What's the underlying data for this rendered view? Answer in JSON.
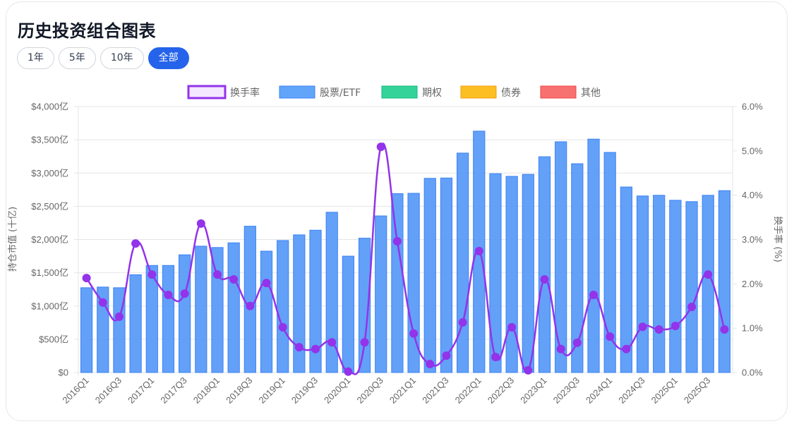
{
  "header": {
    "title": "历史投资组合图表"
  },
  "range_buttons": [
    {
      "label": "1年",
      "active": false
    },
    {
      "label": "5年",
      "active": false
    },
    {
      "label": "10年",
      "active": false
    },
    {
      "label": "全部",
      "active": true
    }
  ],
  "colors": {
    "accent": "#2563eb",
    "stocks_fill": "#60a5fa",
    "stocks_bar": "#5b9bf8",
    "stocks_border": "#3b82f6",
    "options": "#34d399",
    "options_border": "#10b981",
    "bonds": "#fbbf24",
    "bonds_border": "#f59e0b",
    "other": "#f87171",
    "other_border": "#ef4444",
    "turnover_line": "#9333ea",
    "turnover_fill": "#f3e8ff",
    "grid": "#e5e5e5",
    "tick": "#666666"
  },
  "chart_data": {
    "type": "bar",
    "combo": "bar+line",
    "title": "历史投资组合图表",
    "xlabel": "",
    "ylabel": "持仓市值 (十亿)",
    "y2label": "换手率 (%)",
    "ylim": [
      0,
      4000
    ],
    "y2lim": [
      0,
      6.0
    ],
    "y_ticks": [
      "$0",
      "$500亿",
      "$1,000亿",
      "$1,500亿",
      "$2,000亿",
      "$2,500亿",
      "$3,000亿",
      "$3,500亿",
      "$4,000亿"
    ],
    "y2_ticks": [
      "0.0%",
      "1.0%",
      "2.0%",
      "3.0%",
      "4.0%",
      "5.0%",
      "6.0%"
    ],
    "grid": true,
    "legend_position": "top",
    "legend": [
      {
        "name": "换手率",
        "type": "line"
      },
      {
        "name": "股票/ETF",
        "type": "bar"
      },
      {
        "name": "期权",
        "type": "bar"
      },
      {
        "name": "债券",
        "type": "bar"
      },
      {
        "name": "其他",
        "type": "bar"
      }
    ],
    "categories": [
      "2016Q1",
      "2016Q2",
      "2016Q3",
      "2016Q4",
      "2017Q1",
      "2017Q2",
      "2017Q3",
      "2017Q4",
      "2018Q1",
      "2018Q2",
      "2018Q3",
      "2018Q4",
      "2019Q1",
      "2019Q2",
      "2019Q3",
      "2019Q4",
      "2020Q1",
      "2020Q2",
      "2020Q3",
      "2020Q4",
      "2021Q1",
      "2021Q2",
      "2021Q3",
      "2021Q4",
      "2022Q1",
      "2022Q2",
      "2022Q3",
      "2022Q4",
      "2023Q1",
      "2023Q2",
      "2023Q3",
      "2023Q4",
      "2024Q1",
      "2024Q2",
      "2024Q3",
      "2024Q4",
      "2025Q1",
      "2025Q2",
      "2025Q3",
      "2025Q4"
    ],
    "x_tick_labels_shown": [
      "2016Q1",
      "2016Q3",
      "2017Q1",
      "2017Q3",
      "2018Q1",
      "2018Q3",
      "2019Q1",
      "2019Q3",
      "2020Q1",
      "2020Q3",
      "2021Q1",
      "2021Q3",
      "2022Q1",
      "2022Q3",
      "2023Q1",
      "2023Q3",
      "2024Q1",
      "2024Q3",
      "2025Q1",
      "2025Q3"
    ],
    "series": [
      {
        "name": "股票/ETF",
        "type": "bar",
        "axis": "left",
        "unit": "亿",
        "values": [
          1275,
          1285,
          1275,
          1470,
          1610,
          1610,
          1770,
          1900,
          1880,
          1950,
          2200,
          1825,
          1985,
          2070,
          2140,
          2410,
          1750,
          2020,
          2355,
          2690,
          2695,
          2920,
          2925,
          3300,
          3630,
          2990,
          2950,
          2980,
          3245,
          3470,
          3140,
          3510,
          3310,
          2790,
          2655,
          2665,
          2590,
          2570,
          2665,
          2735
        ]
      },
      {
        "name": "期权",
        "type": "bar",
        "axis": "left",
        "unit": "亿",
        "values": [
          0,
          0,
          0,
          0,
          0,
          0,
          0,
          0,
          0,
          0,
          0,
          0,
          0,
          0,
          0,
          0,
          0,
          0,
          0,
          0,
          0,
          0,
          0,
          0,
          0,
          0,
          0,
          0,
          0,
          0,
          0,
          0,
          0,
          0,
          0,
          0,
          0,
          0,
          0,
          0
        ]
      },
      {
        "name": "债券",
        "type": "bar",
        "axis": "left",
        "unit": "亿",
        "values": [
          0,
          0,
          0,
          0,
          0,
          0,
          0,
          0,
          0,
          0,
          0,
          0,
          0,
          0,
          0,
          0,
          0,
          0,
          0,
          0,
          0,
          0,
          0,
          0,
          0,
          0,
          0,
          0,
          0,
          0,
          0,
          0,
          0,
          0,
          0,
          0,
          0,
          0,
          0,
          0
        ]
      },
      {
        "name": "其他",
        "type": "bar",
        "axis": "left",
        "unit": "亿",
        "values": [
          0,
          0,
          0,
          0,
          0,
          0,
          0,
          0,
          0,
          0,
          0,
          0,
          0,
          0,
          0,
          0,
          0,
          0,
          0,
          0,
          0,
          0,
          0,
          0,
          0,
          0,
          0,
          0,
          0,
          0,
          0,
          0,
          0,
          0,
          0,
          0,
          0,
          0,
          0,
          0
        ]
      },
      {
        "name": "换手率",
        "type": "line",
        "axis": "right",
        "unit": "%",
        "values": [
          2.13,
          1.58,
          1.26,
          2.91,
          2.21,
          1.75,
          1.78,
          3.36,
          2.21,
          2.1,
          1.5,
          2.02,
          1.02,
          0.57,
          0.53,
          0.68,
          0.02,
          0.68,
          5.09,
          2.96,
          0.88,
          0.19,
          0.38,
          1.13,
          2.74,
          0.35,
          1.02,
          0.05,
          2.1,
          0.53,
          0.67,
          1.75,
          0.81,
          0.53,
          1.03,
          0.97,
          1.05,
          1.48,
          2.21,
          0.97
        ]
      }
    ]
  }
}
